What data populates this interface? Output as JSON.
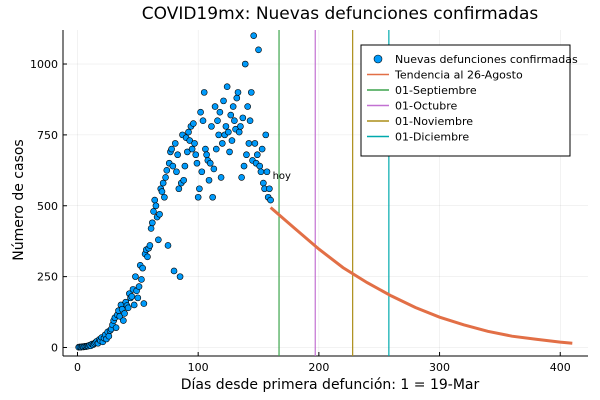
{
  "chart_data": {
    "type": "scatter",
    "title": "COVID19mx: Nuevas defunciones confirmadas",
    "xlabel": "Días desde primera defunción: 1 = 19-Mar",
    "ylabel": "Número de casos",
    "xlim": [
      -12,
      423
    ],
    "ylim": [
      -30,
      1120
    ],
    "xticks": [
      0,
      100,
      200,
      300,
      400
    ],
    "yticks": [
      0,
      250,
      500,
      750,
      1000
    ],
    "grid": true,
    "legend_position": "top-right",
    "annotation": {
      "text": "hoy",
      "x": 160,
      "y": 605
    },
    "colors": {
      "points": "#009AFA",
      "trend": "#E26F46",
      "sep": "#3DA44D",
      "oct": "#C271D2",
      "nov": "#AC8D18",
      "dec": "#00A9AD"
    },
    "legend": [
      {
        "label": "Nuevas defunciones confirmadas",
        "kind": "marker",
        "color_key": "points"
      },
      {
        "label": "Tendencia al 26-Agosto",
        "kind": "line",
        "color_key": "trend"
      },
      {
        "label": "01-Septiembre",
        "kind": "line",
        "color_key": "sep"
      },
      {
        "label": "01-Octubre",
        "kind": "line",
        "color_key": "oct"
      },
      {
        "label": "01-Noviembre",
        "kind": "line",
        "color_key": "nov"
      },
      {
        "label": "01-Diciembre",
        "kind": "line",
        "color_key": "dec"
      }
    ],
    "vlines": [
      {
        "name": "01-Septiembre",
        "x": 167,
        "color_key": "sep"
      },
      {
        "name": "01-Octubre",
        "x": 197,
        "color_key": "oct"
      },
      {
        "name": "01-Noviembre",
        "x": 228,
        "color_key": "nov"
      },
      {
        "name": "01-Diciembre",
        "x": 258,
        "color_key": "dec"
      }
    ],
    "series": [
      {
        "name": "Nuevas defunciones confirmadas",
        "x": [
          1,
          2,
          3,
          4,
          5,
          6,
          7,
          8,
          9,
          10,
          11,
          12,
          13,
          14,
          15,
          16,
          17,
          18,
          19,
          20,
          21,
          22,
          23,
          24,
          25,
          26,
          27,
          28,
          29,
          30,
          31,
          32,
          33,
          34,
          35,
          36,
          37,
          38,
          39,
          40,
          41,
          42,
          43,
          44,
          45,
          46,
          47,
          48,
          49,
          50,
          51,
          52,
          53,
          54,
          55,
          56,
          57,
          58,
          59,
          60,
          61,
          62,
          63,
          64,
          65,
          66,
          67,
          68,
          69,
          70,
          71,
          72,
          73,
          74,
          75,
          76,
          77,
          78,
          79,
          80,
          81,
          82,
          83,
          84,
          85,
          86,
          87,
          88,
          89,
          90,
          91,
          92,
          93,
          94,
          95,
          96,
          97,
          98,
          99,
          100,
          101,
          102,
          103,
          104,
          105,
          106,
          107,
          108,
          109,
          110,
          111,
          112,
          113,
          114,
          115,
          116,
          117,
          118,
          119,
          120,
          121,
          122,
          123,
          124,
          125,
          126,
          127,
          128,
          129,
          130,
          131,
          132,
          133,
          134,
          135,
          136,
          137,
          138,
          139,
          140,
          141,
          142,
          143,
          144,
          145,
          146,
          147,
          148,
          149,
          150,
          151,
          152,
          153,
          154,
          155,
          156,
          157,
          158,
          159,
          160
        ],
        "y": [
          1,
          2,
          1,
          3,
          2,
          4,
          3,
          5,
          5,
          8,
          6,
          12,
          10,
          14,
          18,
          22,
          15,
          28,
          24,
          35,
          20,
          33,
          45,
          30,
          55,
          40,
          60,
          65,
          80,
          95,
          105,
          70,
          115,
          130,
          110,
          150,
          135,
          95,
          120,
          160,
          148,
          140,
          190,
          175,
          180,
          205,
          150,
          250,
          200,
          175,
          215,
          290,
          240,
          280,
          155,
          330,
          345,
          320,
          350,
          360,
          420,
          440,
          480,
          520,
          500,
          460,
          380,
          470,
          560,
          550,
          580,
          530,
          600,
          625,
          360,
          650,
          690,
          700,
          640,
          270,
          720,
          620,
          680,
          560,
          250,
          580,
          750,
          590,
          640,
          740,
          690,
          760,
          730,
          780,
          700,
          790,
          720,
          680,
          650,
          530,
          560,
          830,
          620,
          800,
          900,
          700,
          680,
          660,
          590,
          650,
          780,
          530,
          630,
          850,
          700,
          800,
          750,
          830,
          600,
          720,
          870,
          750,
          780,
          920,
          760,
          690,
          820,
          730,
          850,
          800,
          770,
          880,
          900,
          760,
          780,
          600,
          810,
          640,
          1000,
          680,
          850,
          720,
          800,
          900,
          660,
          1100,
          720,
          650,
          680,
          1050,
          640,
          620,
          700,
          580,
          560,
          750,
          620,
          530,
          560,
          520
        ]
      },
      {
        "name": "Tendencia al 26-Agosto",
        "x": [
          160,
          180,
          200,
          220,
          240,
          260,
          280,
          300,
          320,
          340,
          360,
          380,
          400,
          410
        ],
        "y": [
          494,
          420,
          347,
          282,
          229,
          182,
          141,
          107,
          80,
          57,
          40,
          29,
          19,
          15
        ]
      }
    ]
  }
}
